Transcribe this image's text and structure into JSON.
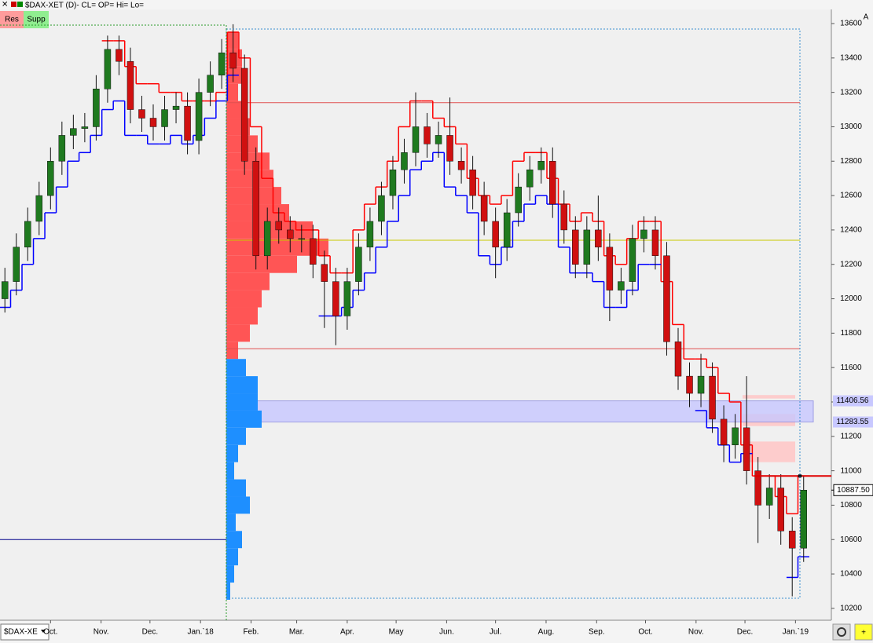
{
  "header": {
    "symbol": "$DAX-XET (D)- CL= OP= Hi= Lo=",
    "buttons": [
      "Res",
      "Supp"
    ],
    "corner_label": "A",
    "dropdown": "$DAX-XE"
  },
  "chart_data": {
    "type": "candlestick",
    "x": [
      -28,
      -21,
      -14,
      -7,
      0,
      7,
      14,
      21,
      28,
      35,
      42,
      49,
      56,
      63,
      70,
      77,
      84,
      91,
      98,
      105,
      112,
      119,
      126,
      133,
      140,
      147,
      154,
      161,
      168,
      175,
      182,
      189,
      196,
      203,
      210,
      217,
      224,
      231,
      238,
      245,
      252,
      259,
      266,
      273,
      280,
      287,
      294,
      301,
      308,
      315,
      322,
      329,
      336,
      343,
      350,
      357,
      364,
      371,
      378,
      385,
      392,
      399,
      406,
      413,
      420,
      427,
      434,
      441,
      448,
      455,
      462
    ],
    "open": [
      12000,
      12100,
      12300,
      12450,
      12600,
      12800,
      12950,
      12990,
      13000,
      13220,
      13450,
      13380,
      13100,
      13050,
      13000,
      13100,
      13120,
      12920,
      13200,
      13300,
      13430,
      13340,
      12800,
      12250,
      12450,
      12400,
      12350,
      12350,
      12200,
      12100,
      11900,
      12100,
      12300,
      12450,
      12600,
      12750,
      12850,
      13000,
      12900,
      12950,
      12800,
      12750,
      12600,
      12450,
      12300,
      12500,
      12650,
      12750,
      12800,
      12550,
      12400,
      12200,
      12400,
      12300,
      12050,
      12100,
      12350,
      12400,
      12250,
      11750,
      11550,
      11450,
      11550,
      11300,
      11150,
      11250,
      11000,
      10800,
      10900,
      10650,
      10550
    ],
    "high": [
      12180,
      12380,
      12530,
      12680,
      12880,
      13030,
      13070,
      13080,
      13300,
      13530,
      13530,
      13460,
      13180,
      13130,
      13180,
      13200,
      13200,
      13280,
      13380,
      13510,
      13596,
      13420,
      12880,
      12530,
      12530,
      12480,
      12430,
      12430,
      12280,
      12180,
      12180,
      12380,
      12530,
      12680,
      12830,
      12930,
      13200,
      13080,
      13030,
      13170,
      12880,
      12830,
      12680,
      12530,
      12580,
      12730,
      12830,
      12880,
      12880,
      12630,
      12480,
      12480,
      12600,
      12380,
      12180,
      12430,
      12480,
      12480,
      12330,
      11830,
      11630,
      11680,
      11630,
      11380,
      11330,
      11550,
      11080,
      10980,
      10980,
      10730,
      10967.5
    ],
    "low": [
      11920,
      12020,
      12220,
      12370,
      12520,
      12720,
      12870,
      12910,
      12920,
      13140,
      13300,
      13020,
      12970,
      12920,
      12920,
      13020,
      12840,
      12840,
      13120,
      13220,
      13260,
      12720,
      12170,
      12170,
      12320,
      12270,
      12270,
      12120,
      11830,
      11730,
      11820,
      12020,
      12220,
      12370,
      12520,
      12670,
      12770,
      12820,
      12820,
      12720,
      12670,
      12520,
      12370,
      12120,
      12220,
      12420,
      12570,
      12670,
      12470,
      12320,
      12120,
      12120,
      12220,
      11870,
      11970,
      12020,
      12270,
      12170,
      11670,
      11470,
      11370,
      11370,
      11220,
      11050,
      11070,
      10920,
      10580,
      10720,
      10570,
      10270,
      10470
    ],
    "close": [
      12100,
      12300,
      12450,
      12600,
      12800,
      12950,
      12990,
      13000,
      13220,
      13450,
      13380,
      13100,
      13050,
      13000,
      13100,
      13120,
      12920,
      13200,
      13300,
      13430,
      13340,
      12800,
      12250,
      12450,
      12400,
      12350,
      12350,
      12200,
      12100,
      11900,
      12100,
      12300,
      12450,
      12600,
      12750,
      12850,
      13000,
      12900,
      12950,
      12800,
      12750,
      12600,
      12450,
      12300,
      12500,
      12650,
      12750,
      12800,
      12550,
      12400,
      12200,
      12400,
      12300,
      12050,
      12100,
      12350,
      12400,
      12250,
      11750,
      11550,
      11450,
      11550,
      11300,
      11150,
      11250,
      11000,
      10800,
      10900,
      10650,
      10550,
      10887.5
    ],
    "up_color": "#1f7a1f",
    "down_color": "#d01010",
    "series": [
      {
        "color": "#ff0000",
        "values": [
          null,
          null,
          null,
          null,
          null,
          null,
          null,
          null,
          null,
          13500,
          13500,
          13350,
          13250,
          13250,
          13200,
          13200,
          13150,
          13150,
          13150,
          13200,
          13550,
          13400,
          13000,
          12700,
          12500,
          12450,
          12400,
          12400,
          12250,
          12150,
          12150,
          12400,
          12550,
          12650,
          12800,
          13000,
          13150,
          13150,
          13050,
          13000,
          12900,
          12700,
          12600,
          12550,
          12600,
          12800,
          12850,
          12850,
          12700,
          12550,
          12450,
          12500,
          12450,
          12250,
          12200,
          12350,
          12450,
          12450,
          12100,
          11850,
          11650,
          11650,
          11600,
          11450,
          11400,
          11150,
          10970,
          10970,
          10850,
          10750,
          10970
        ]
      },
      {
        "color": "#0000ff",
        "values": [
          11950,
          12050,
          12200,
          12350,
          12500,
          12650,
          12800,
          12850,
          12950,
          13100,
          13150,
          12950,
          12950,
          12900,
          12900,
          12950,
          12900,
          12950,
          13050,
          13150,
          13300,
          null,
          null,
          null,
          null,
          null,
          null,
          null,
          11900,
          11900,
          11950,
          12050,
          12150,
          12300,
          12450,
          12600,
          12750,
          12800,
          12850,
          12650,
          12600,
          12500,
          12250,
          12200,
          12300,
          12450,
          12550,
          12600,
          12550,
          12300,
          12150,
          12150,
          12100,
          11950,
          11950,
          12050,
          12200,
          12200,
          null,
          null,
          null,
          11350,
          11250,
          11150,
          11050,
          11100,
          null,
          null,
          null,
          10380,
          10500
        ]
      }
    ],
    "profile_series": [
      {
        "color": "#ff5555",
        "prices": [
          11700,
          11800,
          11900,
          12000,
          12100,
          12200,
          12300,
          12400,
          12500,
          12600,
          12700,
          12800,
          12900,
          13000,
          13100,
          13200,
          13300,
          13400,
          13500
        ],
        "volumes": [
          15,
          30,
          40,
          45,
          55,
          90,
          130,
          110,
          80,
          70,
          60,
          55,
          40,
          30,
          25,
          15,
          20,
          20,
          15
        ]
      },
      {
        "color": "#1e8fff",
        "prices": [
          10300,
          10400,
          10500,
          10600,
          10700,
          10800,
          10900,
          11000,
          11100,
          11200,
          11300,
          11400,
          11500,
          11600
        ],
        "volumes": [
          5,
          10,
          15,
          20,
          12,
          30,
          25,
          10,
          15,
          25,
          45,
          40,
          40,
          25
        ]
      }
    ],
    "levels": [
      {
        "value": 13140,
        "color": "#e05050"
      },
      {
        "value": 11710,
        "color": "#e05050"
      },
      {
        "value": 12340,
        "color": "#c8c800"
      }
    ],
    "left_level": {
      "value": 10600,
      "color": "#00008b"
    },
    "zones": [
      {
        "low": 11420,
        "high": 11440
      },
      {
        "low": 11260,
        "high": 11330
      },
      {
        "low": 11050,
        "high": 11170
      }
    ],
    "zone_band": {
      "high": 11406.56,
      "low": 11283.55
    },
    "last": {
      "value": 10887.5,
      "label": "10887.50"
    },
    "stop_level": 10970,
    "xlim": [
      -31,
      479
    ],
    "ylim": [
      10131,
      13737
    ],
    "xticks": [
      {
        "value": 0,
        "label": "Oct."
      },
      {
        "value": 31,
        "label": "Nov."
      },
      {
        "value": 61,
        "label": "Dec."
      },
      {
        "value": 92,
        "label": "Jan.`18"
      },
      {
        "value": 123,
        "label": "Feb."
      },
      {
        "value": 151,
        "label": "Mar."
      },
      {
        "value": 182,
        "label": "Apr."
      },
      {
        "value": 212,
        "label": "May"
      },
      {
        "value": 243,
        "label": "Jun."
      },
      {
        "value": 273,
        "label": "Jul."
      },
      {
        "value": 304,
        "label": "Aug."
      },
      {
        "value": 335,
        "label": "Sep."
      },
      {
        "value": 365,
        "label": "Oct."
      },
      {
        "value": 396,
        "label": "Nov."
      },
      {
        "value": 426,
        "label": "Dec."
      },
      {
        "value": 457,
        "label": "Jan.`19"
      }
    ],
    "yticks": [
      10200,
      10400,
      10600,
      10800,
      11000,
      11200,
      11400,
      11600,
      11800,
      12000,
      12200,
      12400,
      12600,
      12800,
      13000,
      13200,
      13400,
      13600
    ]
  }
}
